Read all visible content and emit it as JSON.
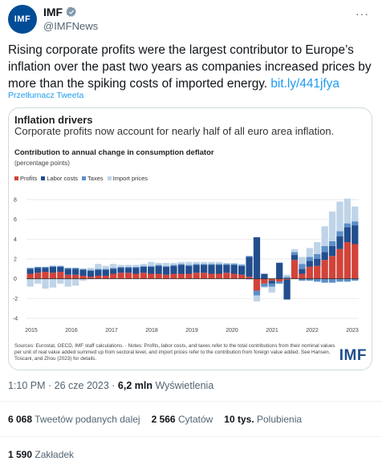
{
  "author": {
    "name": "IMF",
    "handle": "@IMFNews",
    "avatar_text": "IMF"
  },
  "tweet": {
    "text": "Rising corporate profits were the largest contributor to Europe’s inflation over the past two years as companies increased prices by more than the spiking costs of imported energy.",
    "link": "bit.ly/441jfya",
    "translate": "Przetłumacz Tweeta"
  },
  "card": {
    "title": "Inflation drivers",
    "subtitle": "Corporate profits now account for nearly half of all euro area inflation.",
    "chart_title": "Contribution to annual change in consumption deflator",
    "chart_unit": "(percentage points)",
    "notes": "Sources: Eurostat, OECD, IMF staff calculations. · Notes: Profits, labor costs, and taxes refer to the total contributions from their nominal values per unit of real value added summed up from sectoral level, and import prices refer to the contribution from foreign value added. See Hansen, Toscani, and Zhou (2023) for details.",
    "logo": "IMF"
  },
  "chart_data": {
    "type": "bar",
    "stacked": true,
    "ylim": [
      -4,
      8
    ],
    "y_ticks": [
      -4,
      -2,
      0,
      2,
      4,
      6,
      8
    ],
    "x_ticks": [
      "2015",
      "2016",
      "2017",
      "2018",
      "2019",
      "2020",
      "2021",
      "2022",
      "2023"
    ],
    "colors": {
      "profits": "#d2433a",
      "labor": "#234e8e",
      "taxes": "#5b8fc7",
      "imports": "#bfd4e8"
    },
    "series": [
      {
        "name": "Profits",
        "key": "profits",
        "values": [
          0.5,
          0.6,
          0.7,
          0.6,
          0.7,
          0.4,
          0.4,
          0.3,
          0.2,
          0.3,
          0.3,
          0.5,
          0.6,
          0.6,
          0.5,
          0.6,
          0.5,
          0.5,
          0.4,
          0.5,
          0.5,
          0.5,
          0.6,
          0.6,
          0.5,
          0.5,
          0.6,
          0.5,
          0.4,
          0.2,
          -1.2,
          -0.5,
          -0.2,
          -0.3,
          -0.1,
          1.9,
          0.5,
          1.2,
          1.3,
          1.9,
          2.3,
          3.0,
          3.7,
          3.5
        ]
      },
      {
        "name": "Labor costs",
        "key": "labor",
        "values": [
          0.5,
          0.5,
          0.4,
          0.6,
          0.5,
          0.6,
          0.6,
          0.6,
          0.6,
          0.6,
          0.6,
          0.5,
          0.5,
          0.5,
          0.6,
          0.6,
          0.7,
          0.8,
          0.8,
          0.8,
          0.9,
          0.8,
          0.8,
          0.8,
          0.9,
          0.9,
          0.8,
          0.9,
          0.9,
          2.0,
          4.2,
          0.5,
          -0.3,
          1.6,
          -2.0,
          0.5,
          0.5,
          0.6,
          0.7,
          0.8,
          1.0,
          1.3,
          1.5,
          1.9
        ]
      },
      {
        "name": "Taxes",
        "key": "taxes",
        "values": [
          0.1,
          0.1,
          0.1,
          0.1,
          0.1,
          0.1,
          0.1,
          0.1,
          0.1,
          0.1,
          0.1,
          0.1,
          0.1,
          0.1,
          0.1,
          0.1,
          0.1,
          0.1,
          0.1,
          0.1,
          0.1,
          0.1,
          0.1,
          0.1,
          0.1,
          0.1,
          0.1,
          0.1,
          0.1,
          0.1,
          -0.5,
          -0.3,
          -0.3,
          -0.2,
          0.2,
          0.3,
          0.5,
          0.4,
          0.5,
          0.6,
          0.5,
          0.5,
          0.4,
          0.4
        ]
      },
      {
        "name": "Import prices",
        "key": "imports",
        "values": [
          -0.8,
          -0.5,
          -1.0,
          -0.9,
          -0.5,
          -0.8,
          -0.7,
          -0.2,
          0.2,
          0.5,
          0.3,
          0.4,
          0.2,
          0.2,
          0.2,
          0.2,
          0.4,
          0.2,
          0.3,
          0.2,
          0.2,
          0.3,
          0.2,
          0.2,
          0.2,
          0.2,
          0.1,
          0.1,
          0.1,
          -0.1,
          -0.6,
          -0.1,
          -0.6,
          0.1,
          0.2,
          0.3,
          0.7,
          0.9,
          1.2,
          2.0,
          3.0,
          3.0,
          2.5,
          1.5
        ]
      }
    ],
    "negative_extra": [
      0,
      0,
      0,
      0,
      0,
      0,
      0,
      0,
      0,
      0,
      0,
      0,
      0,
      0,
      0,
      0,
      0,
      0,
      0,
      0,
      0,
      0,
      0,
      0,
      0,
      0,
      0,
      0,
      0,
      0,
      0,
      0,
      0,
      0,
      0,
      0,
      -0.2,
      -0.2,
      -0.3,
      -0.4,
      -0.4,
      -0.3,
      -0.3,
      -0.2
    ]
  },
  "meta": {
    "time": "1:10 PM · 26 cze 2023 · ",
    "views_count": "6,2 mln",
    "views_label": " Wyświetlenia"
  },
  "stats": {
    "retweets_count": "6 068",
    "retweets_label": " Tweetów podanych dalej",
    "quotes_count": "2 566",
    "quotes_label": " Cytatów",
    "likes_count": "10 tys.",
    "likes_label": " Polubienia",
    "bookmarks_count": "1 590",
    "bookmarks_label": " Zakładek"
  }
}
